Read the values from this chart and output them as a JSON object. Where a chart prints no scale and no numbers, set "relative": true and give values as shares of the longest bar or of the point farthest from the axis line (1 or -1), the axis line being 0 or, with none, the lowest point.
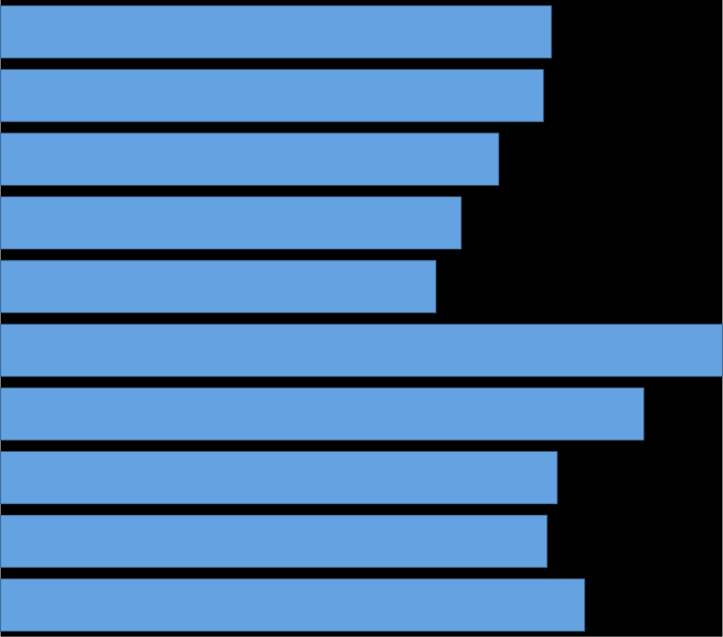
{
  "chart_data": {
    "type": "bar",
    "orientation": "horizontal",
    "relative": true,
    "categories": [
      null,
      null,
      null,
      null,
      null,
      null,
      null,
      null,
      null,
      null
    ],
    "values": [
      0.763,
      0.752,
      0.69,
      0.638,
      0.603,
      1,
      0.891,
      0.771,
      0.757,
      0.809
    ],
    "color": "#64a2e2"
  }
}
